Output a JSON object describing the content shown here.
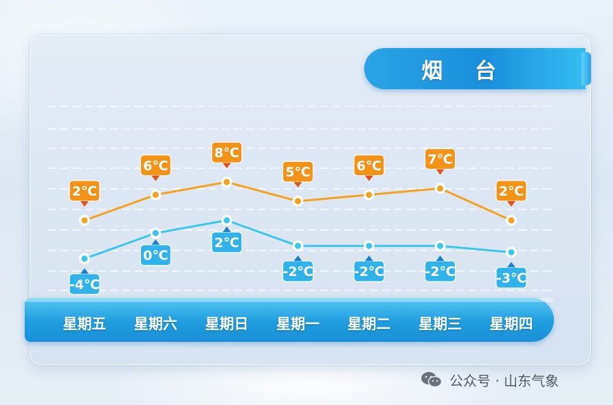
{
  "city": "烟 台",
  "footer": {
    "source": "公众号 · 山东气象",
    "icon": "wechat-icon"
  },
  "colors": {
    "high": "#f2a21c",
    "high_label": "#f29318",
    "low": "#39c6ef",
    "low_label": "#2fb3ea",
    "bar": "#1f9ddf"
  },
  "chart_data": {
    "type": "line",
    "categories": [
      "星期五",
      "星期六",
      "星期日",
      "星期一",
      "星期二",
      "星期三",
      "星期四"
    ],
    "series": [
      {
        "values": [
          2,
          6,
          8,
          5,
          6,
          7,
          2
        ],
        "labels": [
          "2℃",
          "6℃",
          "8℃",
          "5℃",
          "6℃",
          "7℃",
          "2℃"
        ]
      },
      {
        "values": [
          -4,
          0,
          2,
          -2,
          -2,
          -2,
          -3
        ],
        "labels": [
          "-4℃",
          "0℃",
          "2℃",
          "-2℃",
          "-2℃",
          "-2℃",
          "-3℃"
        ]
      }
    ],
    "ylim": [
      -6,
      12
    ],
    "grid": "dashed horizontal"
  }
}
